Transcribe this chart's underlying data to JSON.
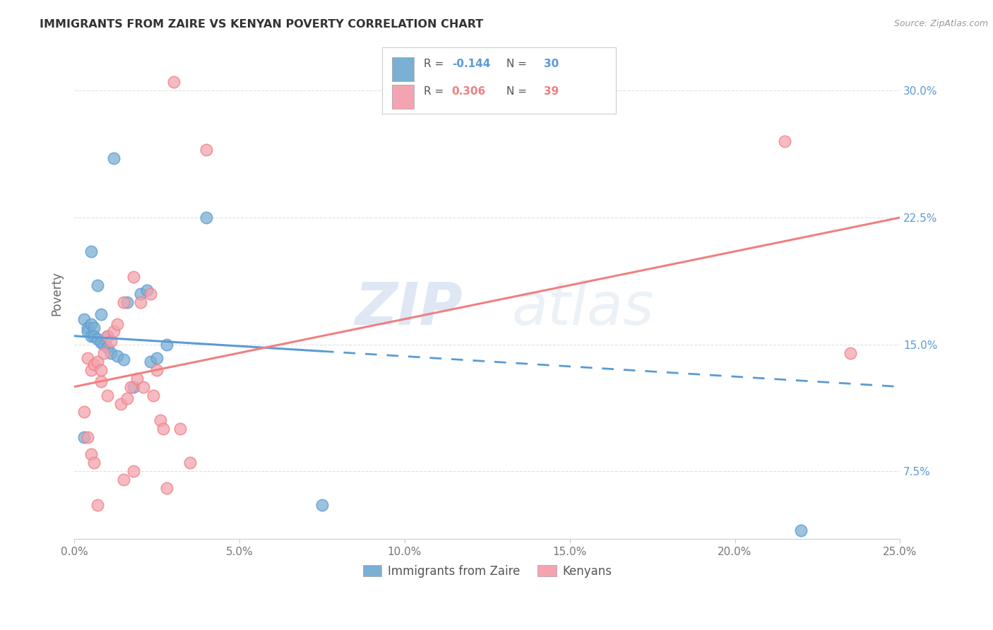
{
  "title": "IMMIGRANTS FROM ZAIRE VS KENYAN POVERTY CORRELATION CHART",
  "source": "Source: ZipAtlas.com",
  "xlabel_ticks": [
    "0.0%",
    "5.0%",
    "10.0%",
    "15.0%",
    "20.0%",
    "25.0%"
  ],
  "xlabel_vals": [
    0.0,
    5.0,
    10.0,
    15.0,
    20.0,
    25.0
  ],
  "ylabel_ticks": [
    "7.5%",
    "15.0%",
    "22.5%",
    "30.0%"
  ],
  "ylabel_vals": [
    7.5,
    15.0,
    22.5,
    30.0
  ],
  "xmin": 0.0,
  "xmax": 25.0,
  "ymin": 3.5,
  "ymax": 32.5,
  "legend_label1": "Immigrants from Zaire",
  "legend_label2": "Kenyans",
  "ylabel": "Poverty",
  "r1": -0.144,
  "n1": 30,
  "r2": 0.306,
  "n2": 39,
  "color_blue": "#7bafd4",
  "color_pink": "#f4a3b0",
  "color_blue_line": "#5b9bd5",
  "color_pink_line": "#f08080",
  "blue_scatter_x": [
    0.3,
    0.4,
    0.4,
    0.5,
    0.5,
    0.5,
    0.6,
    0.6,
    0.7,
    0.7,
    0.8,
    0.8,
    0.9,
    1.0,
    1.0,
    1.1,
    1.2,
    1.3,
    1.5,
    1.6,
    1.8,
    2.0,
    2.2,
    2.3,
    2.5,
    2.8,
    4.0,
    0.3,
    7.5,
    22.0
  ],
  "blue_scatter_y": [
    16.5,
    16.0,
    15.8,
    20.5,
    16.2,
    15.5,
    16.0,
    15.5,
    18.5,
    15.3,
    15.1,
    16.8,
    15.0,
    14.8,
    15.5,
    14.5,
    26.0,
    14.3,
    14.1,
    17.5,
    12.5,
    18.0,
    18.2,
    14.0,
    14.2,
    15.0,
    22.5,
    9.5,
    5.5,
    4.0
  ],
  "pink_scatter_x": [
    0.3,
    0.4,
    0.4,
    0.5,
    0.5,
    0.6,
    0.6,
    0.7,
    0.7,
    0.8,
    0.8,
    0.9,
    1.0,
    1.0,
    1.1,
    1.2,
    1.3,
    1.4,
    1.5,
    1.5,
    1.6,
    1.7,
    1.8,
    1.8,
    1.9,
    2.0,
    2.1,
    2.3,
    2.4,
    2.5,
    2.6,
    2.7,
    2.8,
    3.0,
    3.2,
    3.5,
    4.0,
    21.5,
    23.5
  ],
  "pink_scatter_y": [
    11.0,
    14.2,
    9.5,
    13.5,
    8.5,
    13.8,
    8.0,
    14.0,
    5.5,
    12.8,
    13.5,
    14.5,
    15.5,
    12.0,
    15.2,
    15.8,
    16.2,
    11.5,
    17.5,
    7.0,
    11.8,
    12.5,
    19.0,
    7.5,
    13.0,
    17.5,
    12.5,
    18.0,
    12.0,
    13.5,
    10.5,
    10.0,
    6.5,
    30.5,
    10.0,
    8.0,
    26.5,
    27.0,
    14.5
  ],
  "blue_solid_xmax": 7.5,
  "watermark_zip": "ZIP",
  "watermark_atlas": "atlas",
  "background_color": "#ffffff",
  "grid_color": "#e0e0e0"
}
